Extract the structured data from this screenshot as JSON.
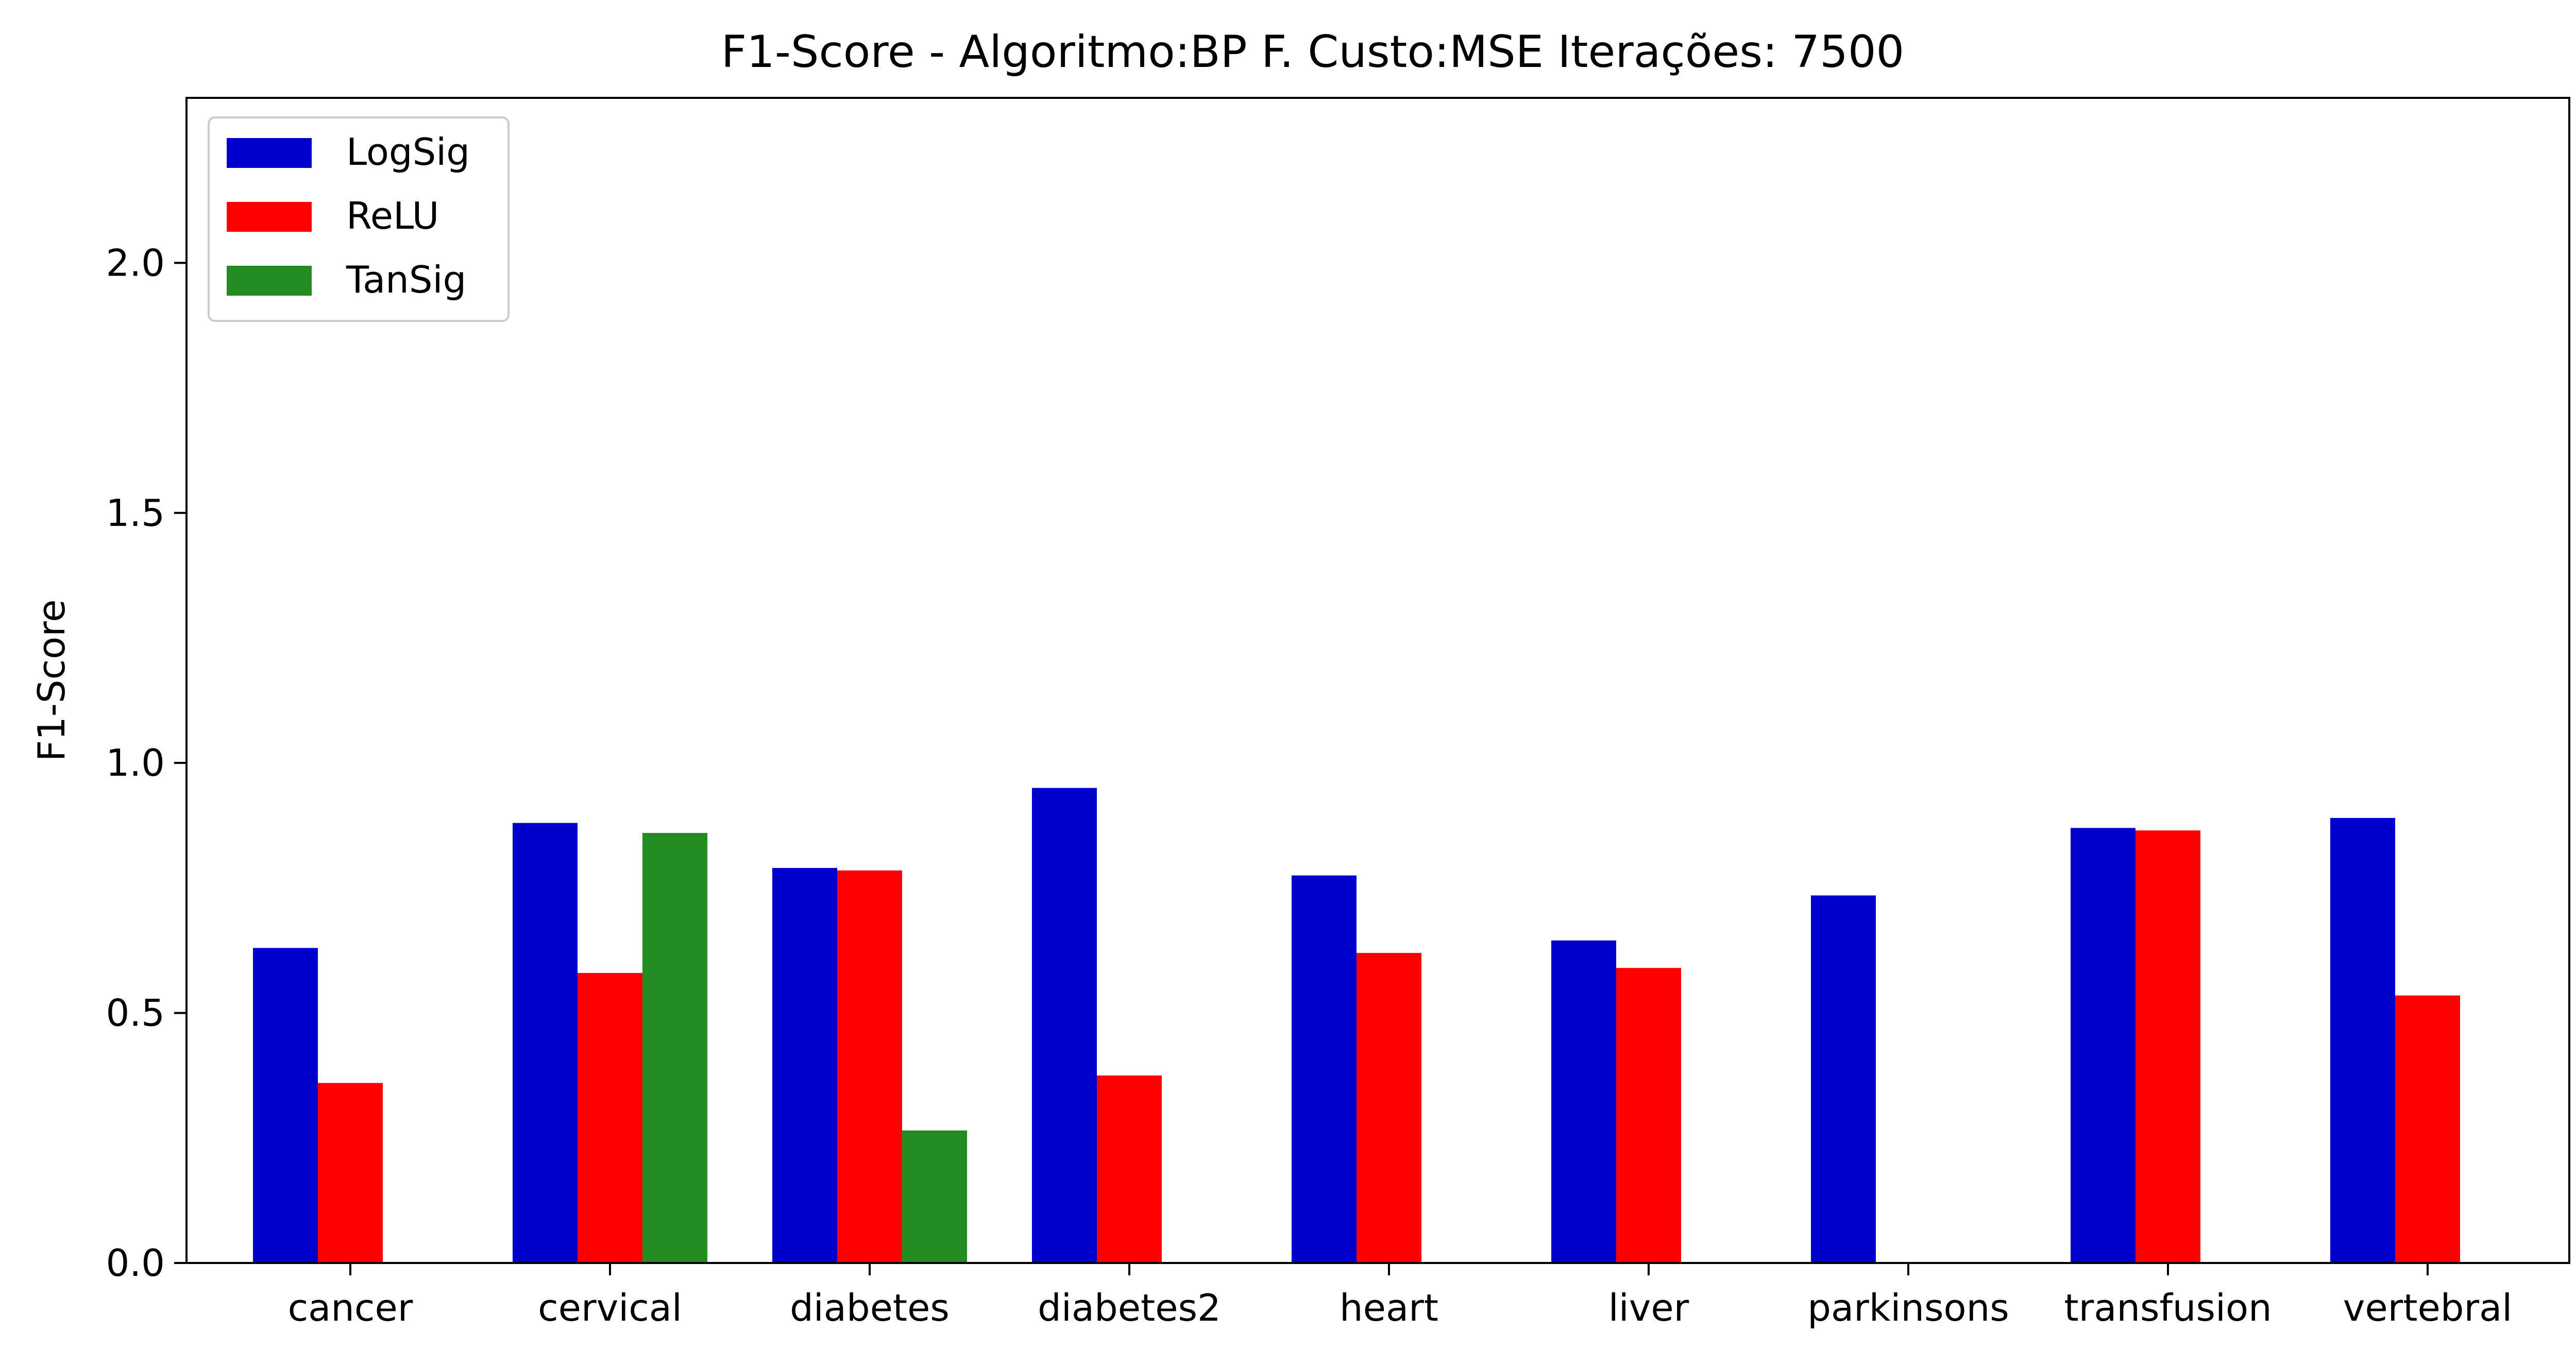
{
  "chart_data": {
    "type": "bar",
    "title": "F1-Score - Algoritmo:BP F. Custo:MSE Iterações: 7500",
    "xlabel": "",
    "ylabel": "F1-Score",
    "ylim": [
      0,
      2.33
    ],
    "yticks": [
      "0.0",
      "0.5",
      "1.0",
      "1.5",
      "2.0"
    ],
    "ytick_values": [
      0.0,
      0.5,
      1.0,
      1.5,
      2.0
    ],
    "grid": false,
    "legend": "top-left",
    "categories": [
      "cancer",
      "cervical",
      "diabetes",
      "diabetes2",
      "heart",
      "liver",
      "parkinsons",
      "transfusion",
      "vertebral"
    ],
    "series": [
      {
        "name": "LogSig",
        "color": "#0000cc",
        "values": [
          0.63,
          0.88,
          0.79,
          0.95,
          0.775,
          0.645,
          0.735,
          0.87,
          0.89
        ]
      },
      {
        "name": "ReLU",
        "color": "#ff0000",
        "values": [
          0.36,
          0.58,
          0.785,
          0.375,
          0.62,
          0.59,
          0.0,
          0.865,
          0.535
        ]
      },
      {
        "name": "TanSig",
        "color": "#228b22",
        "values": [
          0.0,
          0.86,
          0.265,
          0.0,
          0.0,
          0.0,
          0.0,
          0.0,
          0.0
        ]
      }
    ]
  }
}
